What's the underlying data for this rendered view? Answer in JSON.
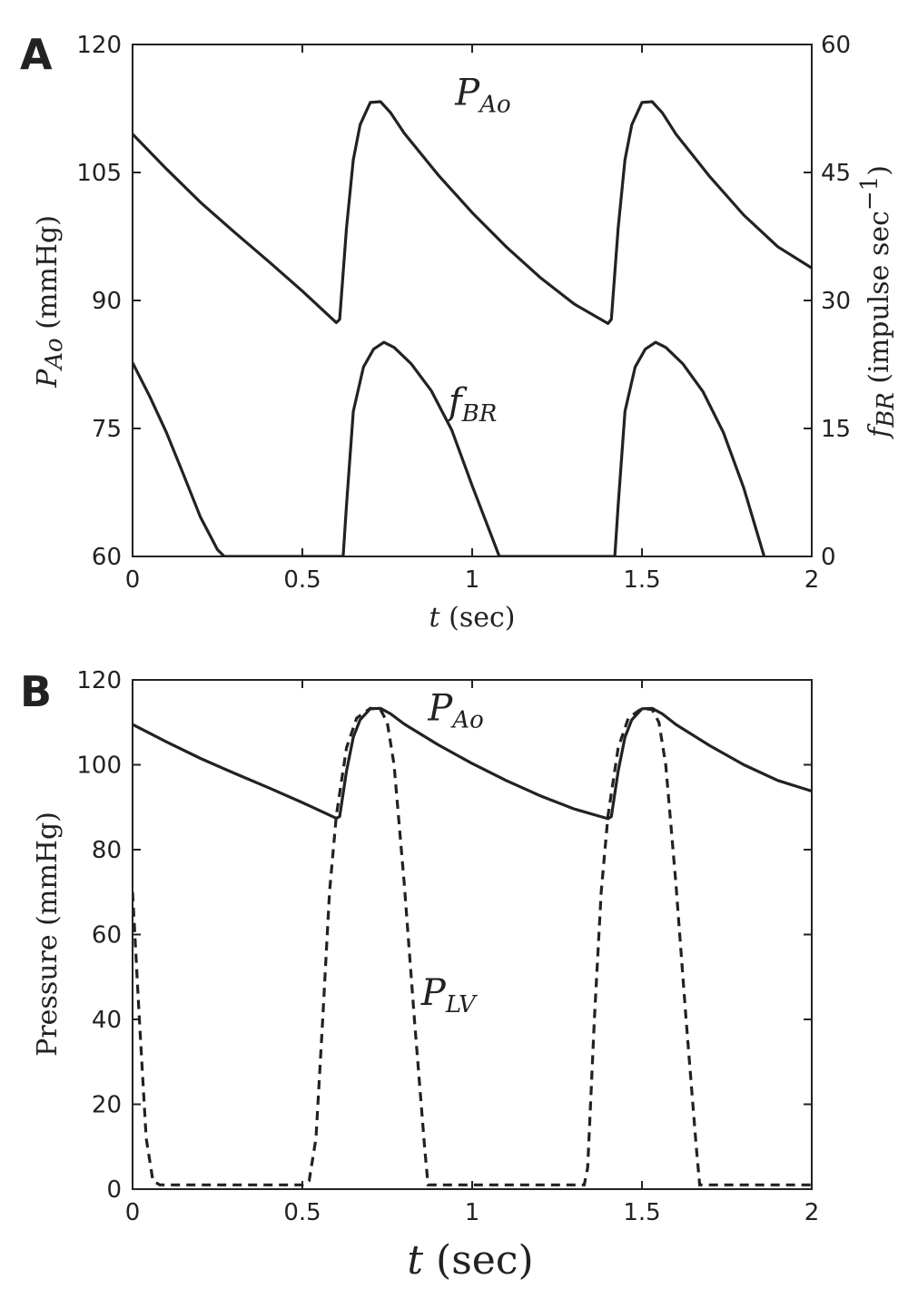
{
  "chart_data": [
    {
      "panel": "A",
      "type": "line",
      "xlabel": {
        "var": "t",
        "rest": " (sec)"
      },
      "ylabel_left": {
        "var": "P",
        "sub": "Ao",
        "rest": " (mmHg)"
      },
      "ylabel_right": {
        "var": "f",
        "sub": "BR",
        "rest": " (impulse sec",
        "sup": "−1",
        "end": ")"
      },
      "xlim": [
        0,
        2
      ],
      "ylim_left": [
        60,
        120
      ],
      "ylim_right": [
        0,
        60
      ],
      "x_ticks": [
        "0",
        "0.5",
        "1",
        "1.5",
        "2"
      ],
      "y_ticks_left": [
        "60",
        "75",
        "90",
        "105",
        "120"
      ],
      "y_ticks_right": [
        "0",
        "15",
        "30",
        "45",
        "60"
      ],
      "x_tick_values": [
        0,
        0.5,
        1,
        1.5,
        2
      ],
      "y_tick_values_left": [
        60,
        75,
        90,
        105,
        120
      ],
      "y_tick_values_right": [
        0,
        15,
        30,
        45,
        60
      ],
      "annotations": [
        {
          "var": "P",
          "sub": "Ao",
          "x": 0.95,
          "y": 114.2
        },
        {
          "var": "f",
          "sub": "BR",
          "x": 0.93,
          "y": 78
        }
      ],
      "series": [
        {
          "axis": "left",
          "style": "solid",
          "x": [
            0,
            0.1,
            0.2,
            0.3,
            0.4,
            0.5,
            0.6,
            0.61,
            0.63,
            0.65,
            0.67,
            0.7,
            0.73,
            0.76,
            0.8,
            0.9,
            1.0,
            1.1,
            1.2,
            1.3,
            1.4,
            1.41,
            1.43,
            1.45,
            1.47,
            1.5,
            1.53,
            1.56,
            1.6,
            1.7,
            1.8,
            1.9,
            2.0
          ],
          "y": [
            109.5,
            105.4,
            101.5,
            98.0,
            94.6,
            91.1,
            87.4,
            87.8,
            98.5,
            106.5,
            110.6,
            113.2,
            113.3,
            112.0,
            109.6,
            104.7,
            100.3,
            96.3,
            92.7,
            89.6,
            87.3,
            87.8,
            98.5,
            106.5,
            110.6,
            113.2,
            113.3,
            112.0,
            109.5,
            104.5,
            100.0,
            96.3,
            93.8
          ]
        },
        {
          "axis": "right",
          "style": "solid",
          "x": [
            0,
            0.05,
            0.1,
            0.15,
            0.2,
            0.25,
            0.27,
            0.62,
            0.63,
            0.65,
            0.68,
            0.71,
            0.74,
            0.77,
            0.82,
            0.88,
            0.94,
            1.0,
            1.06,
            1.08,
            1.42,
            1.43,
            1.45,
            1.48,
            1.51,
            1.54,
            1.57,
            1.62,
            1.68,
            1.74,
            1.8,
            1.86
          ],
          "y": [
            22.7,
            18.8,
            14.5,
            9.6,
            4.6,
            0.8,
            0,
            0,
            6,
            17,
            22.2,
            24.3,
            25.1,
            24.5,
            22.6,
            19.4,
            14.8,
            8.3,
            2.1,
            0,
            0,
            6,
            17,
            22.2,
            24.3,
            25.1,
            24.5,
            22.6,
            19.3,
            14.5,
            8,
            0
          ]
        }
      ]
    },
    {
      "panel": "B",
      "type": "line",
      "xlabel": {
        "var": "t",
        "rest": " (sec)"
      },
      "ylabel": "Pressure (mmHg)",
      "xlim": [
        0,
        2
      ],
      "ylim": [
        0,
        120
      ],
      "x_ticks": [
        "0",
        "0.5",
        "1",
        "1.5",
        "2"
      ],
      "y_ticks": [
        "0",
        "20",
        "40",
        "60",
        "80",
        "100",
        "120"
      ],
      "x_tick_values": [
        0,
        0.5,
        1,
        1.5,
        2
      ],
      "y_tick_values": [
        0,
        20,
        40,
        60,
        80,
        100,
        120
      ],
      "annotations": [
        {
          "var": "P",
          "sub": "Ao",
          "x": 0.87,
          "y": 113
        },
        {
          "var": "P",
          "sub": "LV",
          "x": 0.85,
          "y": 46
        }
      ],
      "series": [
        {
          "name": "P_Ao",
          "style": "solid",
          "x": [
            0,
            0.1,
            0.2,
            0.3,
            0.4,
            0.5,
            0.6,
            0.61,
            0.63,
            0.65,
            0.67,
            0.7,
            0.73,
            0.76,
            0.8,
            0.9,
            1.0,
            1.1,
            1.2,
            1.3,
            1.4,
            1.41,
            1.43,
            1.45,
            1.47,
            1.5,
            1.53,
            1.56,
            1.6,
            1.7,
            1.8,
            1.9,
            2.0
          ],
          "y": [
            109.5,
            105.4,
            101.5,
            98.0,
            94.6,
            91.1,
            87.4,
            87.8,
            98.5,
            106.5,
            110.6,
            113.2,
            113.3,
            112.0,
            109.6,
            104.7,
            100.3,
            96.3,
            92.7,
            89.6,
            87.3,
            87.8,
            98.5,
            106.5,
            110.6,
            113.2,
            113.3,
            112.0,
            109.5,
            104.5,
            100.0,
            96.3,
            93.8
          ]
        },
        {
          "name": "P_LV",
          "style": "dashed",
          "x": [
            0,
            0.02,
            0.04,
            0.06,
            0.08,
            0.5,
            0.52,
            0.54,
            0.56,
            0.58,
            0.6,
            0.63,
            0.66,
            0.7,
            0.73,
            0.75,
            0.77,
            0.8,
            0.83,
            0.86,
            0.87,
            1.33,
            1.34,
            1.36,
            1.38,
            1.4,
            1.43,
            1.46,
            1.5,
            1.53,
            1.55,
            1.57,
            1.6,
            1.63,
            1.66,
            1.67,
            2.0
          ],
          "y": [
            70,
            40,
            12,
            2,
            1,
            1,
            2,
            12,
            40,
            70,
            88,
            104,
            111,
            113.3,
            113,
            110,
            100,
            72,
            40,
            10,
            1,
            1,
            5,
            40,
            70,
            88,
            104,
            111,
            113.3,
            113,
            110,
            100,
            72,
            40,
            10,
            1,
            1
          ]
        }
      ]
    }
  ],
  "panels": {
    "a": {
      "letter": "A"
    },
    "b": {
      "letter": "B"
    }
  }
}
